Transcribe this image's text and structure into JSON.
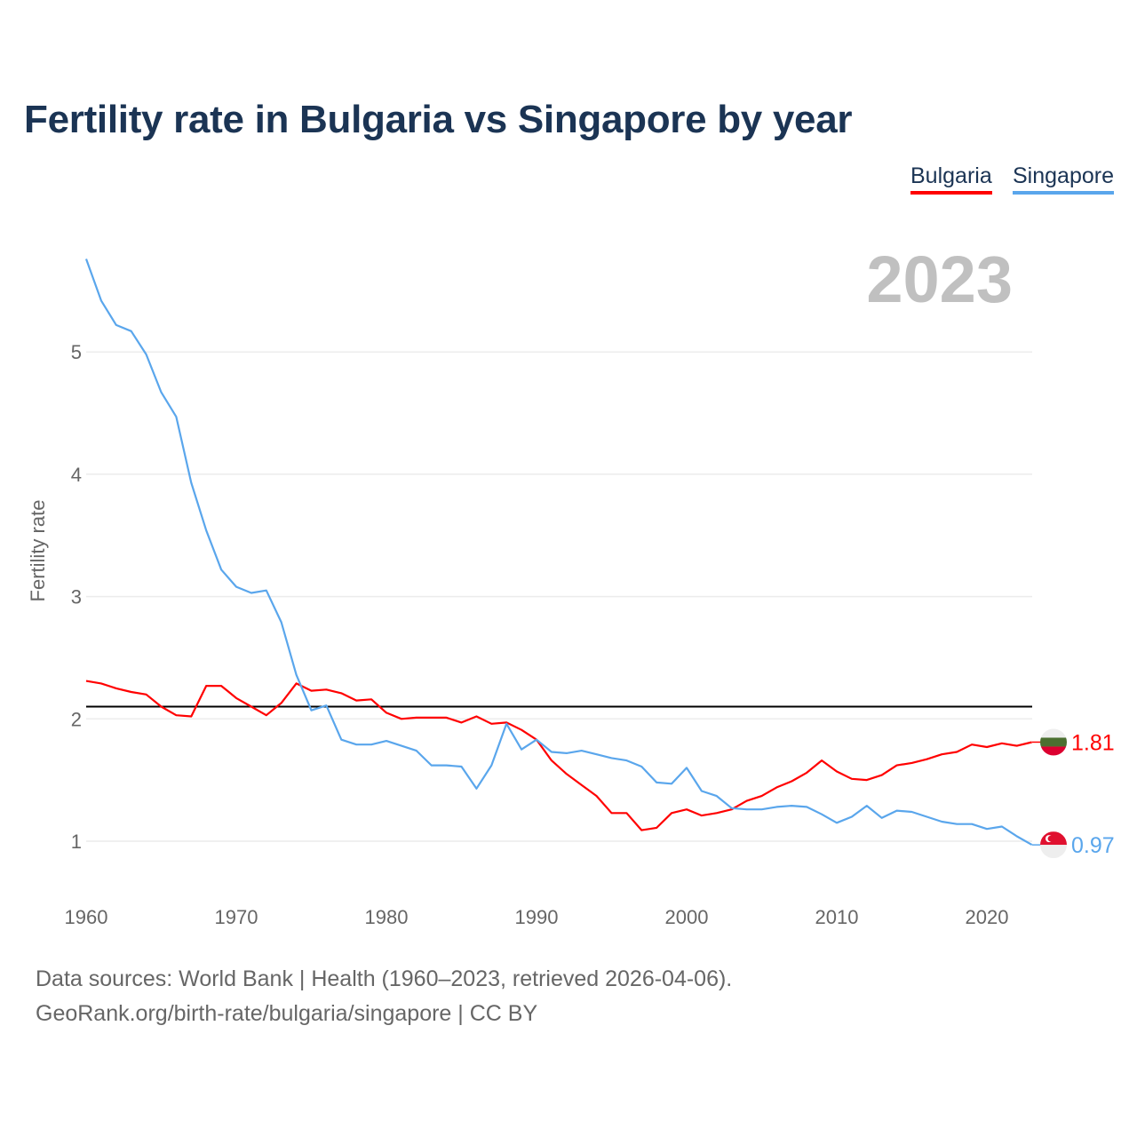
{
  "chart_data": {
    "type": "line",
    "title": "Fertility rate in Bulgaria vs Singapore by year",
    "ylabel": "Fertility rate",
    "xlabel": "",
    "year_label": "2023",
    "xlim": [
      1960,
      2023
    ],
    "ylim": [
      0.6,
      5.85
    ],
    "x_ticks": [
      1960,
      1970,
      1980,
      1990,
      2000,
      2010,
      2020
    ],
    "y_ticks": [
      1,
      2,
      3,
      4,
      5
    ],
    "reference_line": 2.1,
    "legend": [
      "Bulgaria",
      "Singapore"
    ],
    "legend_position": "top-right",
    "grid": true,
    "x": [
      1960,
      1961,
      1962,
      1963,
      1964,
      1965,
      1966,
      1967,
      1968,
      1969,
      1970,
      1971,
      1972,
      1973,
      1974,
      1975,
      1976,
      1977,
      1978,
      1979,
      1980,
      1981,
      1982,
      1983,
      1984,
      1985,
      1986,
      1987,
      1988,
      1989,
      1990,
      1991,
      1992,
      1993,
      1994,
      1995,
      1996,
      1997,
      1998,
      1999,
      2000,
      2001,
      2002,
      2003,
      2004,
      2005,
      2006,
      2007,
      2008,
      2009,
      2010,
      2011,
      2012,
      2013,
      2014,
      2015,
      2016,
      2017,
      2018,
      2019,
      2020,
      2021,
      2022,
      2023
    ],
    "series": [
      {
        "name": "Bulgaria",
        "color": "#ff0000",
        "end_label": "1.81",
        "values": [
          2.31,
          2.29,
          2.25,
          2.22,
          2.2,
          2.1,
          2.03,
          2.02,
          2.27,
          2.27,
          2.17,
          2.1,
          2.03,
          2.13,
          2.29,
          2.23,
          2.24,
          2.21,
          2.15,
          2.16,
          2.05,
          2.0,
          2.01,
          2.01,
          2.01,
          1.97,
          2.02,
          1.96,
          1.97,
          1.91,
          1.83,
          1.66,
          1.55,
          1.46,
          1.37,
          1.23,
          1.23,
          1.09,
          1.11,
          1.23,
          1.26,
          1.21,
          1.23,
          1.26,
          1.33,
          1.37,
          1.44,
          1.49,
          1.56,
          1.66,
          1.57,
          1.51,
          1.5,
          1.54,
          1.62,
          1.64,
          1.67,
          1.71,
          1.73,
          1.79,
          1.77,
          1.8,
          1.78,
          1.81
        ]
      },
      {
        "name": "Singapore",
        "color": "#5aa6ec",
        "end_label": "0.97",
        "values": [
          5.76,
          5.42,
          5.22,
          5.17,
          4.98,
          4.67,
          4.47,
          3.93,
          3.54,
          3.22,
          3.08,
          3.03,
          3.05,
          2.79,
          2.36,
          2.07,
          2.11,
          1.83,
          1.79,
          1.79,
          1.82,
          1.78,
          1.74,
          1.62,
          1.62,
          1.61,
          1.43,
          1.62,
          1.96,
          1.75,
          1.83,
          1.73,
          1.72,
          1.74,
          1.71,
          1.68,
          1.66,
          1.61,
          1.48,
          1.47,
          1.6,
          1.41,
          1.37,
          1.27,
          1.26,
          1.26,
          1.28,
          1.29,
          1.28,
          1.22,
          1.15,
          1.2,
          1.29,
          1.19,
          1.25,
          1.24,
          1.2,
          1.16,
          1.14,
          1.14,
          1.1,
          1.12,
          1.04,
          0.97
        ]
      }
    ]
  },
  "footer": {
    "source": "Data sources: World Bank | Health (1960–2023, retrieved 2026-04-06).",
    "credit": "GeoRank.org/birth-rate/bulgaria/singapore | CC BY"
  }
}
